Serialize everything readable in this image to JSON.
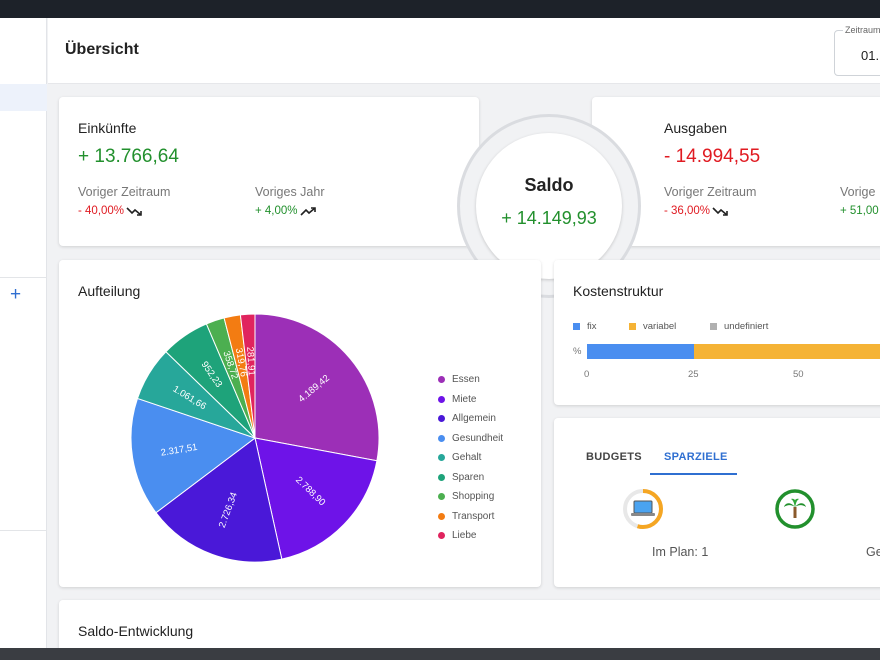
{
  "header": {
    "title": "Übersicht",
    "period": {
      "label": "Zeitraum",
      "value": "01."
    }
  },
  "income": {
    "title": "Einkünfte",
    "value": "+ 13.766,64",
    "prev_period": {
      "label": "Voriger Zeitraum",
      "value": "- 40,00%",
      "trend": "trend-down-icon"
    },
    "prev_year": {
      "label": "Voriges Jahr",
      "value": "+ 4,00%",
      "trend": "trend-up-icon"
    }
  },
  "balance": {
    "title": "Saldo",
    "value": "+ 14.149,93"
  },
  "expenses": {
    "title": "Ausgaben",
    "value": "- 14.994,55",
    "prev_period": {
      "label": "Voriger Zeitraum",
      "value": "- 36,00%",
      "trend": "trend-down-icon"
    },
    "prev_year": {
      "label": "Vorige",
      "value": "+ 51,00"
    }
  },
  "split": {
    "title": "Aufteilung",
    "slices": [
      {
        "name": "Essen",
        "value": 4189.42,
        "label": "4.189,42",
        "color": "#9c2fb7"
      },
      {
        "name": "Miete",
        "value": 2788.9,
        "label": "2.788,90",
        "color": "#6e13e8"
      },
      {
        "name": "Allgemein",
        "value": 2726.34,
        "label": "2.726,34",
        "color": "#4a18d8"
      },
      {
        "name": "Gesundheit",
        "value": 2317.51,
        "label": "2.317,51",
        "color": "#4a8ef0"
      },
      {
        "name": "Gehalt",
        "value": 1061.66,
        "label": "1.061,66",
        "color": "#27a79a"
      },
      {
        "name": "Sparen",
        "value": 952.23,
        "label": "952,23",
        "color": "#1ea37a"
      },
      {
        "name": "Shopping",
        "value": 358.72,
        "label": "358,72",
        "color": "#4caf50"
      },
      {
        "name": "Transport",
        "value": 319.76,
        "label": "319,76",
        "color": "#f37c12"
      },
      {
        "name": "Liebe",
        "value": 281.91,
        "label": "281,91",
        "color": "#e0245e"
      }
    ]
  },
  "cost_structure": {
    "title": "Kostenstruktur",
    "legend": [
      {
        "name": "fix",
        "color": "#4a8ef0"
      },
      {
        "name": "variabel",
        "color": "#f5b335"
      },
      {
        "name": "undefiniert",
        "color": "#b0b0b0"
      }
    ],
    "y_label": "%",
    "fix_percent": 25.5,
    "ticks": [
      "0",
      "25",
      "50"
    ]
  },
  "goals": {
    "tabs": [
      {
        "label": "BUDGETS",
        "active": false
      },
      {
        "label": "SPARZIELE",
        "active": true
      }
    ],
    "items": [
      {
        "icon": "laptop-icon",
        "caption": "Im Plan: 1",
        "progress": 0.55,
        "color": "#f5a623"
      },
      {
        "icon": "palm-tree-icon",
        "caption": "Ge",
        "progress": 1.0,
        "color": "#22902d"
      }
    ]
  },
  "balance_trend": {
    "title": "Saldo-Entwicklung"
  }
}
